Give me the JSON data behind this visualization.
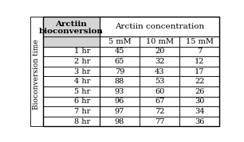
{
  "title_left_line1": "Arctiin",
  "title_left_line2": "bioconversion",
  "title_right": "Arctiin concentration",
  "col_headers": [
    "5 mM",
    "10 mM",
    "15 mM"
  ],
  "row_headers": [
    "1 hr",
    "2 hr",
    "3 hr",
    "4 hr",
    "5 hr",
    "6 hr",
    "7 hr",
    "8 hr"
  ],
  "side_label": "Bioconversion time",
  "data": [
    [
      45,
      20,
      7
    ],
    [
      65,
      32,
      12
    ],
    [
      79,
      43,
      17
    ],
    [
      88,
      53,
      22
    ],
    [
      93,
      60,
      26
    ],
    [
      96,
      67,
      30
    ],
    [
      97,
      72,
      34
    ],
    [
      98,
      77,
      36
    ]
  ],
  "background_color": "#ffffff",
  "header_bg": "#d4d4d4",
  "border_color": "#000000",
  "font_size": 7.0,
  "header_font_size": 7.5,
  "side_label_fontsize": 6.5
}
